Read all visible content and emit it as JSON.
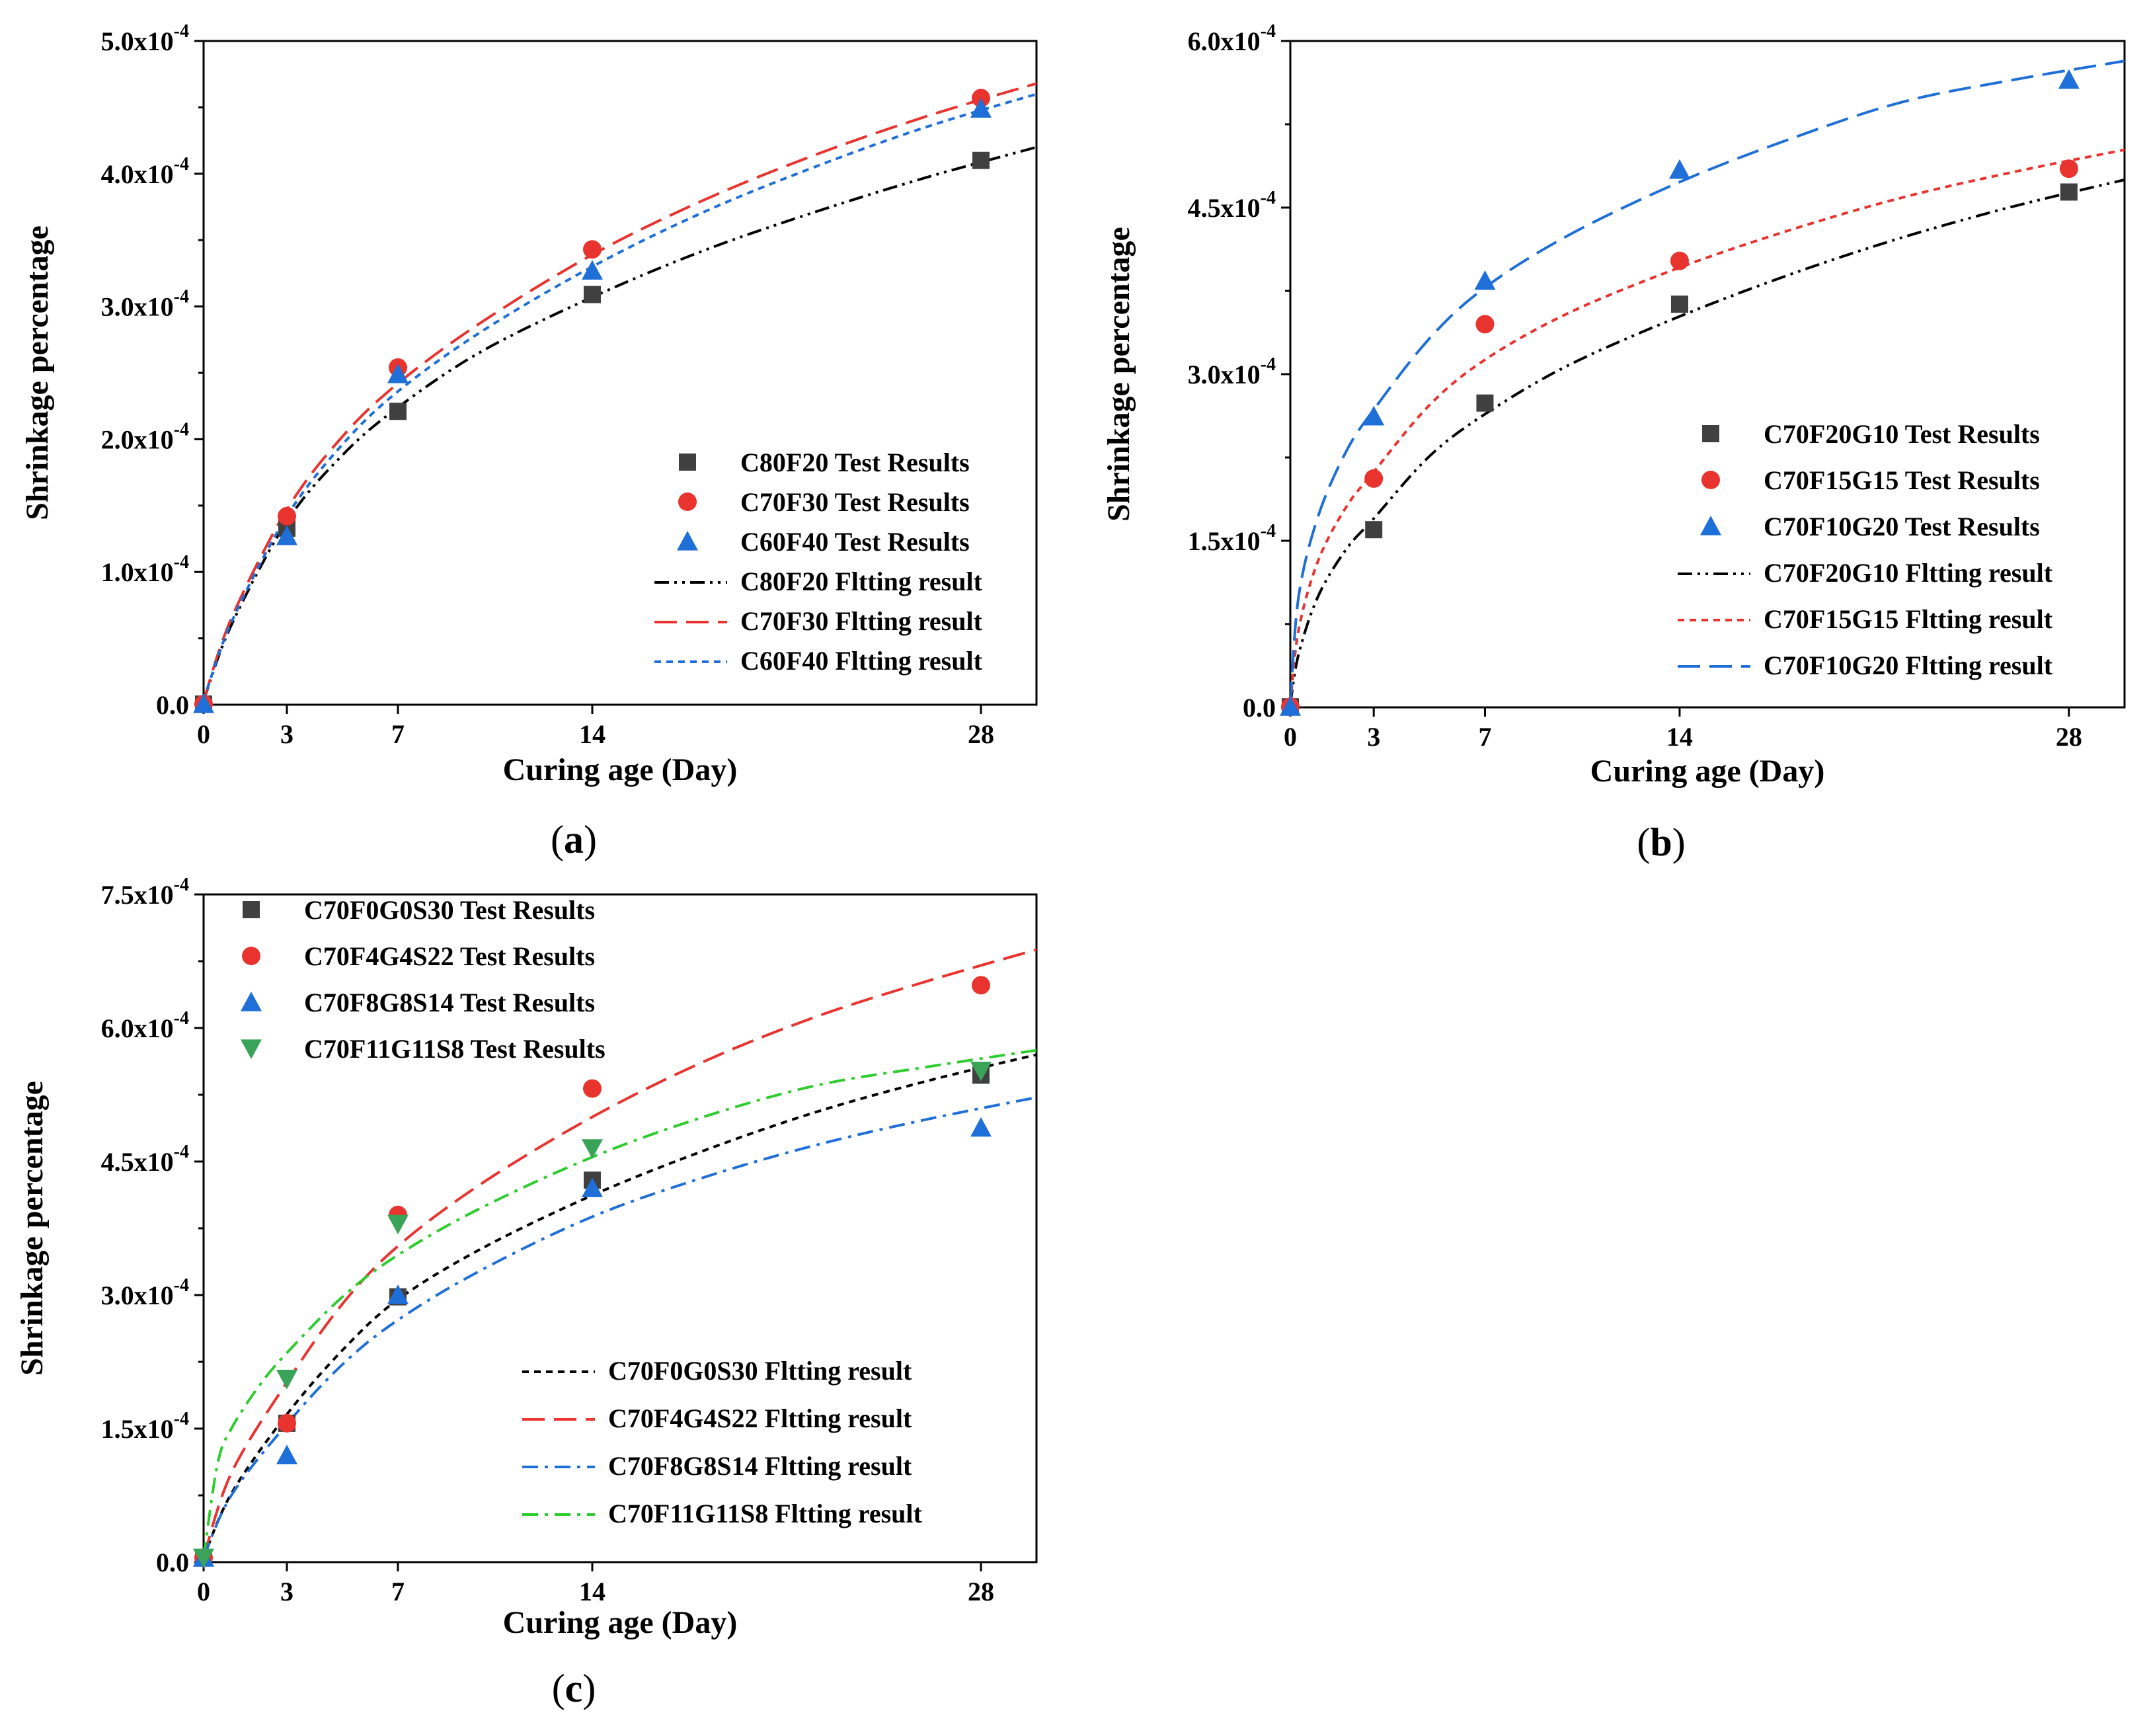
{
  "chart_data": [
    {
      "panel": "a",
      "type": "scatter",
      "panel_label_open": "(",
      "panel_label_letter": "a",
      "panel_label_close": ")",
      "xlabel": "Curing age (Day)",
      "ylabel": "Shrinkage percentage",
      "xlim": [
        0,
        30
      ],
      "ylim": [
        0,
        0.0005
      ],
      "x_ticks": [
        0,
        3,
        7,
        14,
        28
      ],
      "x_tick_labels": [
        "0",
        "3",
        "7",
        "14",
        "28"
      ],
      "y_ticks": [
        0,
        0.0001,
        0.0002,
        0.0003,
        0.0004,
        0.0005
      ],
      "y_tick_labels": [
        {
          "base": "0.0",
          "exp": ""
        },
        {
          "base": "1.0x10",
          "exp": "-4"
        },
        {
          "base": "2.0x10",
          "exp": "-4"
        },
        {
          "base": "3.0x10",
          "exp": "-4"
        },
        {
          "base": "4.0x10",
          "exp": "-4"
        },
        {
          "base": "5.0x10",
          "exp": "-4"
        }
      ],
      "legend_position": "bottom-right",
      "series": [
        {
          "name": "C80F20 Test Results",
          "kind": "points",
          "marker": "square",
          "color": "#404040",
          "x": [
            0,
            3,
            7,
            14,
            28
          ],
          "y": [
            5e-07,
            0.000133,
            0.000221,
            0.000309,
            0.00041
          ]
        },
        {
          "name": "C70F30 Test Results",
          "kind": "points",
          "marker": "circle",
          "color": "#e8332f",
          "x": [
            0,
            3,
            7,
            14,
            28
          ],
          "y": [
            5e-07,
            0.000142,
            0.000254,
            0.000343,
            0.000457
          ]
        },
        {
          "name": "C60F40 Test Results",
          "kind": "points",
          "marker": "triangle-up",
          "color": "#1f6fd8",
          "x": [
            0,
            3,
            7,
            14,
            28
          ],
          "y": [
            5e-07,
            0.000127,
            0.000249,
            0.000327,
            0.000449
          ]
        },
        {
          "name": "C80F20 Fltting result",
          "kind": "line",
          "dash": "dash-dot-dot",
          "color": "#000000",
          "x": [
            0,
            1,
            3,
            5,
            7,
            10,
            14,
            18,
            22,
            26,
            30
          ],
          "y": [
            3e-06,
            6e-05,
            0.000138,
            0.000188,
            0.000224,
            0.000266,
            0.000307,
            0.000342,
            0.000371,
            0.000397,
            0.00042
          ]
        },
        {
          "name": "C70F30 Fltting result",
          "kind": "line",
          "dash": "long-dash",
          "color": "#e8332f",
          "x": [
            0,
            1,
            3,
            5,
            7,
            10,
            14,
            18,
            22,
            26,
            30
          ],
          "y": [
            3e-06,
            6.5e-05,
            0.000147,
            0.000202,
            0.000242,
            0.000288,
            0.000339,
            0.00038,
            0.000414,
            0.000443,
            0.000468
          ]
        },
        {
          "name": "C60F40 Fltting result",
          "kind": "line",
          "dash": "short-dash",
          "color": "#1f6fd8",
          "x": [
            0,
            1,
            3,
            5,
            7,
            10,
            14,
            18,
            22,
            26,
            30
          ],
          "y": [
            3e-06,
            6.2e-05,
            0.000142,
            0.000196,
            0.000236,
            0.000281,
            0.00033,
            0.000371,
            0.000405,
            0.000435,
            0.00046
          ]
        }
      ]
    },
    {
      "panel": "b",
      "type": "scatter",
      "panel_label_open": "(",
      "panel_label_letter": "b",
      "panel_label_close": ")",
      "xlabel": "Curing age (Day)",
      "ylabel": "Shrinkage percentage",
      "xlim": [
        0,
        30
      ],
      "ylim": [
        0,
        0.0006
      ],
      "x_ticks": [
        0,
        3,
        7,
        14,
        28
      ],
      "x_tick_labels": [
        "0",
        "3",
        "7",
        "14",
        "28"
      ],
      "y_ticks": [
        0,
        0.00015,
        0.0003,
        0.00045,
        0.0006
      ],
      "y_tick_labels": [
        {
          "base": "0.0",
          "exp": ""
        },
        {
          "base": "1.5x10",
          "exp": "-4"
        },
        {
          "base": "3.0x10",
          "exp": "-4"
        },
        {
          "base": "4.5x10",
          "exp": "-4"
        },
        {
          "base": "6.0x10",
          "exp": "-4"
        }
      ],
      "legend_position": "bottom-right",
      "series": [
        {
          "name": "C70F20G10 Test Results",
          "kind": "points",
          "marker": "square",
          "color": "#404040",
          "x": [
            0,
            3,
            7,
            14,
            28
          ],
          "y": [
            5e-07,
            0.00016,
            0.000274,
            0.000363,
            0.000464
          ]
        },
        {
          "name": "C70F15G15 Test Results",
          "kind": "points",
          "marker": "circle",
          "color": "#e8332f",
          "x": [
            0,
            3,
            7,
            14,
            28
          ],
          "y": [
            5e-07,
            0.000206,
            0.000345,
            0.000402,
            0.000485
          ]
        },
        {
          "name": "C70F10G20 Test Results",
          "kind": "points",
          "marker": "triangle-up",
          "color": "#1f6fd8",
          "x": [
            0,
            3,
            7,
            14,
            28
          ],
          "y": [
            5e-07,
            0.000262,
            0.000384,
            0.000484,
            0.000565
          ]
        },
        {
          "name": "C70F20G10 Fltting result",
          "kind": "line",
          "dash": "dash-dot-dot",
          "color": "#000000",
          "x": [
            0,
            0.3,
            1,
            2,
            3,
            5,
            7,
            10,
            14,
            18,
            22,
            26,
            30
          ],
          "y": [
            3e-06,
            4.8e-05,
            0.0001,
            0.000142,
            0.00017,
            0.000226,
            0.000264,
            0.000308,
            0.000352,
            0.00039,
            0.000423,
            0.000451,
            0.000475
          ]
        },
        {
          "name": "C70F15G15 Fltting result",
          "kind": "line",
          "dash": "short-dash",
          "color": "#e8332f",
          "x": [
            0,
            0.3,
            1,
            2,
            3,
            5,
            7,
            10,
            14,
            18,
            22,
            26,
            30
          ],
          "y": [
            3e-06,
            7e-05,
            0.000132,
            0.00018,
            0.000212,
            0.000272,
            0.000313,
            0.000355,
            0.000396,
            0.00043,
            0.000459,
            0.000482,
            0.000502
          ]
        },
        {
          "name": "C70F10G20 Fltting result",
          "kind": "line",
          "dash": "long-dash",
          "color": "#1f6fd8",
          "x": [
            0,
            0.3,
            1,
            2,
            3,
            5,
            7,
            10,
            14,
            18,
            22,
            26,
            30
          ],
          "y": [
            3e-06,
            0.0001,
            0.000172,
            0.00023,
            0.000268,
            0.000332,
            0.000378,
            0.000425,
            0.000473,
            0.000512,
            0.000545,
            0.000565,
            0.000582
          ]
        }
      ]
    },
    {
      "panel": "c",
      "type": "scatter",
      "panel_label_open": "(",
      "panel_label_letter": "c",
      "panel_label_close": ")",
      "xlabel": "Curing age (Day)",
      "ylabel": "Shrinkage percentage",
      "xlim": [
        0,
        30
      ],
      "ylim": [
        0,
        0.00075
      ],
      "x_ticks": [
        0,
        3,
        7,
        14,
        28
      ],
      "x_tick_labels": [
        "0",
        "3",
        "7",
        "14",
        "28"
      ],
      "y_ticks": [
        0,
        0.00015,
        0.0003,
        0.00045,
        0.0006,
        0.00075
      ],
      "y_tick_labels": [
        {
          "base": "0.0",
          "exp": ""
        },
        {
          "base": "1.5x10",
          "exp": "-4"
        },
        {
          "base": "3.0x10",
          "exp": "-4"
        },
        {
          "base": "4.5x10",
          "exp": "-4"
        },
        {
          "base": "6.0x10",
          "exp": "-4"
        },
        {
          "base": "7.5x10",
          "exp": "-4"
        }
      ],
      "legend_position": "top-left (markers), bottom-right (lines)",
      "series": [
        {
          "name": "C70F0G0S30 Test Results",
          "kind": "points",
          "marker": "square",
          "color": "#404040",
          "x": [
            0,
            3,
            7,
            14,
            28
          ],
          "y": [
            5e-06,
            0.000156,
            0.000298,
            0.000429,
            0.000547
          ]
        },
        {
          "name": "C70F4G4S22 Test Results",
          "kind": "points",
          "marker": "circle",
          "color": "#e8332f",
          "x": [
            0,
            3,
            7,
            14,
            28
          ],
          "y": [
            5e-06,
            0.000156,
            0.00039,
            0.000532,
            0.000648
          ]
        },
        {
          "name": "C70F8G8S14 Test Results",
          "kind": "points",
          "marker": "triangle-up",
          "color": "#1f6fd8",
          "x": [
            0,
            3,
            7,
            14,
            28
          ],
          "y": [
            5e-06,
            0.00012,
            0.0003,
            0.00042,
            0.000488
          ]
        },
        {
          "name": "C70F11G11S8 Test Results",
          "kind": "points",
          "marker": "triangle-down",
          "color": "#3aa35a",
          "x": [
            0,
            3,
            7,
            14,
            28
          ],
          "y": [
            5e-06,
            0.000206,
            0.00038,
            0.000465,
            0.000552
          ]
        },
        {
          "name": "C70F0G0S30 Fltting result",
          "kind": "line",
          "dash": "short-dash",
          "color": "#000000",
          "x": [
            0,
            1,
            3,
            5,
            7,
            10,
            14,
            18,
            22,
            26,
            30
          ],
          "y": [
            5e-06,
            7.7e-05,
            0.000166,
            0.000238,
            0.000295,
            0.000352,
            0.000412,
            0.000462,
            0.000505,
            0.00054,
            0.00057
          ]
        },
        {
          "name": "C70F4G4S22 Fltting result",
          "kind": "line",
          "dash": "long-dash",
          "color": "#e8332f",
          "x": [
            0,
            1,
            3,
            5,
            7,
            10,
            14,
            18,
            22,
            26,
            30
          ],
          "y": [
            5e-06,
            0.0001,
            0.000202,
            0.00029,
            0.000355,
            0.000425,
            0.0005,
            0.000562,
            0.000612,
            0.000652,
            0.000688
          ]
        },
        {
          "name": "C70F8G8S14 Fltting result",
          "kind": "line",
          "dash": "dash-dot",
          "color": "#1f6fd8",
          "x": [
            0,
            1,
            3,
            5,
            7,
            10,
            14,
            18,
            22,
            26,
            30
          ],
          "y": [
            5e-06,
            7.5e-05,
            0.000155,
            0.000222,
            0.000272,
            0.000328,
            0.000388,
            0.000432,
            0.000468,
            0.000497,
            0.000522
          ]
        },
        {
          "name": "C70F11G11S8 Fltting result",
          "kind": "line",
          "dash": "dash-dot",
          "color": "#2ecc2e",
          "x": [
            0,
            0.5,
            1,
            2,
            3,
            5,
            7,
            10,
            14,
            18,
            22,
            26,
            30
          ],
          "y": [
            5e-06,
            0.00011,
            0.00015,
            0.000198,
            0.000235,
            0.000298,
            0.000345,
            0.000398,
            0.000455,
            0.0005,
            0.000535,
            0.000556,
            0.000575
          ]
        }
      ]
    }
  ]
}
